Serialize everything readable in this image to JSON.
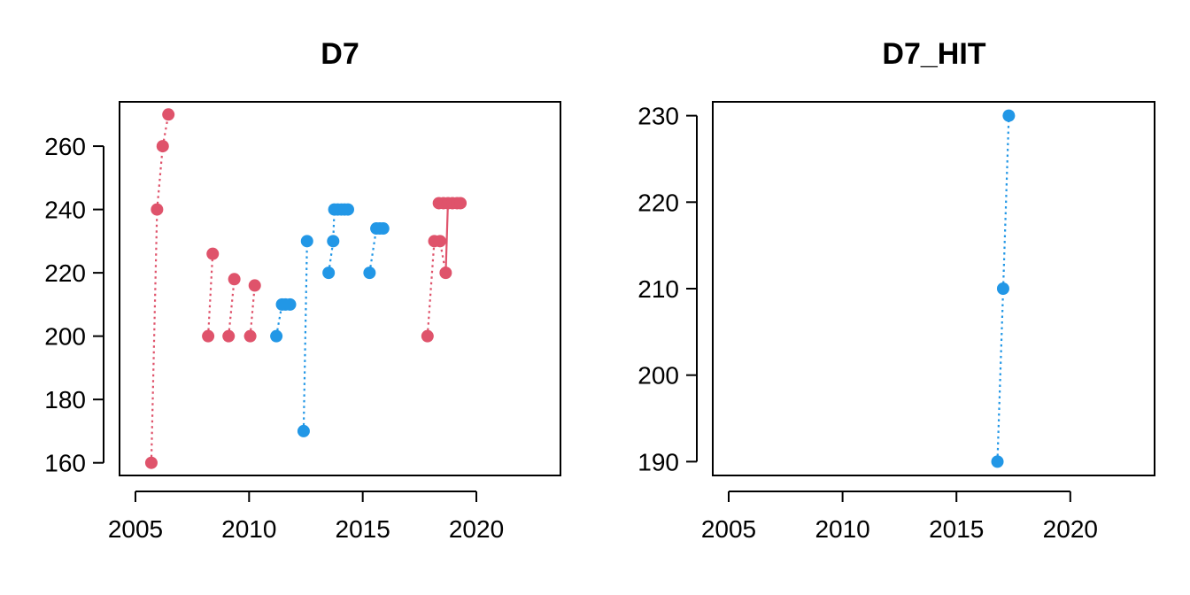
{
  "chart_data": [
    {
      "type": "scatter",
      "title": "D7",
      "xlabel": "",
      "ylabel": "",
      "xlim": [
        2004.3,
        2023.7
      ],
      "ylim": [
        156,
        274
      ],
      "x_ticks": [
        2005,
        2010,
        2015,
        2020
      ],
      "y_ticks": [
        160,
        180,
        200,
        220,
        240,
        260
      ],
      "grid": false,
      "colors": {
        "red": "#DF536B",
        "blue": "#2297E6"
      },
      "series": [
        {
          "color": "red",
          "points": [
            [
              2005.7,
              160
            ],
            [
              2005.95,
              240
            ],
            [
              2006.2,
              260
            ],
            [
              2006.45,
              270
            ]
          ]
        },
        {
          "color": "red",
          "points": [
            [
              2008.2,
              200
            ],
            [
              2008.4,
              226
            ]
          ]
        },
        {
          "color": "red",
          "points": [
            [
              2009.1,
              200
            ],
            [
              2009.35,
              218
            ]
          ]
        },
        {
          "color": "red",
          "points": [
            [
              2010.05,
              200
            ],
            [
              2010.25,
              216
            ]
          ]
        },
        {
          "color": "blue",
          "points": [
            [
              2011.2,
              200
            ],
            [
              2011.45,
              210
            ],
            [
              2011.6,
              210
            ],
            [
              2011.8,
              210
            ]
          ]
        },
        {
          "color": "blue",
          "points": [
            [
              2012.4,
              170
            ],
            [
              2012.55,
              230
            ]
          ]
        },
        {
          "color": "blue",
          "points": [
            [
              2013.5,
              220
            ],
            [
              2013.7,
              230
            ],
            [
              2013.75,
              240
            ],
            [
              2013.9,
              240
            ],
            [
              2014.05,
              240
            ],
            [
              2014.2,
              240
            ],
            [
              2014.35,
              240
            ]
          ]
        },
        {
          "color": "blue",
          "points": [
            [
              2015.3,
              220
            ],
            [
              2015.6,
              234
            ],
            [
              2015.75,
              234
            ],
            [
              2015.9,
              234
            ]
          ]
        },
        {
          "color": "red",
          "points": [
            [
              2017.85,
              200
            ],
            [
              2018.15,
              230
            ],
            [
              2018.4,
              230
            ],
            [
              2018.65,
              220
            ]
          ]
        },
        {
          "color": "red",
          "points": [
            [
              2018.35,
              242
            ],
            [
              2018.55,
              242
            ],
            [
              2018.75,
              242
            ],
            [
              2018.95,
              242
            ],
            [
              2019.15,
              242
            ],
            [
              2019.3,
              242
            ]
          ]
        }
      ],
      "solid_connectors": [
        {
          "color": "red",
          "points": [
            [
              2018.65,
              220
            ],
            [
              2018.75,
              242
            ]
          ]
        }
      ]
    },
    {
      "type": "scatter",
      "title": "D7_HIT",
      "xlabel": "",
      "ylabel": "",
      "xlim": [
        2004.3,
        2023.7
      ],
      "ylim": [
        188.4,
        231.6
      ],
      "x_ticks": [
        2005,
        2010,
        2015,
        2020
      ],
      "y_ticks": [
        190,
        200,
        210,
        220,
        230
      ],
      "grid": false,
      "colors": {
        "blue": "#2297E6"
      },
      "series": [
        {
          "color": "blue",
          "points": [
            [
              2016.8,
              190
            ],
            [
              2017.05,
              210
            ],
            [
              2017.3,
              230
            ]
          ]
        }
      ],
      "solid_connectors": []
    }
  ]
}
